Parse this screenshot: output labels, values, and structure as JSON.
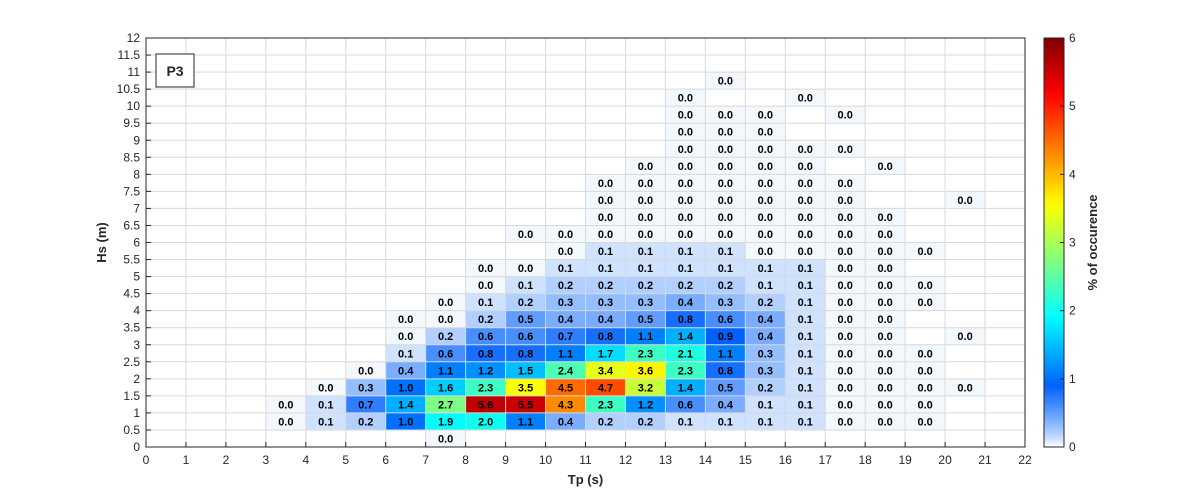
{
  "chart_data": {
    "type": "heatmap",
    "panel_label": "P3",
    "xlabel": "Tp (s)",
    "ylabel": "Hs (m)",
    "colorbar_label": "% of occurence",
    "xlim": [
      0,
      22
    ],
    "ylim": [
      0,
      12
    ],
    "x_bin_width": 1,
    "y_bin_width": 0.5,
    "x_ticks": [
      "0",
      "1",
      "2",
      "3",
      "4",
      "5",
      "6",
      "7",
      "8",
      "9",
      "10",
      "11",
      "12",
      "13",
      "14",
      "15",
      "16",
      "17",
      "18",
      "19",
      "20",
      "21",
      "22"
    ],
    "y_ticks": [
      "0",
      "0.5",
      "1",
      "1.5",
      "2",
      "2.5",
      "3",
      "3.5",
      "4",
      "4.5",
      "5",
      "5.5",
      "6",
      "6.5",
      "7",
      "7.5",
      "8",
      "8.5",
      "9",
      "9.5",
      "10",
      "10.5",
      "11",
      "11.5",
      "12"
    ],
    "colorbar_ticks": [
      "0",
      "1",
      "2",
      "3",
      "4",
      "5",
      "6"
    ],
    "clim": [
      0,
      6
    ],
    "grid": true,
    "colormap": "jet (white at 0)",
    "cells": [
      {
        "tp": 7.5,
        "hs": 0.25,
        "value": "0.0"
      },
      {
        "tp": 3.5,
        "hs": 0.75,
        "value": "0.0"
      },
      {
        "tp": 4.5,
        "hs": 0.75,
        "value": "0.1"
      },
      {
        "tp": 5.5,
        "hs": 0.75,
        "value": "0.2"
      },
      {
        "tp": 6.5,
        "hs": 0.75,
        "value": "1.0"
      },
      {
        "tp": 7.5,
        "hs": 0.75,
        "value": "1.9"
      },
      {
        "tp": 8.5,
        "hs": 0.75,
        "value": "2.0"
      },
      {
        "tp": 9.5,
        "hs": 0.75,
        "value": "1.1"
      },
      {
        "tp": 10.5,
        "hs": 0.75,
        "value": "0.4"
      },
      {
        "tp": 11.5,
        "hs": 0.75,
        "value": "0.2"
      },
      {
        "tp": 12.5,
        "hs": 0.75,
        "value": "0.2"
      },
      {
        "tp": 13.5,
        "hs": 0.75,
        "value": "0.1"
      },
      {
        "tp": 14.5,
        "hs": 0.75,
        "value": "0.1"
      },
      {
        "tp": 15.5,
        "hs": 0.75,
        "value": "0.1"
      },
      {
        "tp": 16.5,
        "hs": 0.75,
        "value": "0.1"
      },
      {
        "tp": 17.5,
        "hs": 0.75,
        "value": "0.0"
      },
      {
        "tp": 18.5,
        "hs": 0.75,
        "value": "0.0"
      },
      {
        "tp": 19.5,
        "hs": 0.75,
        "value": "0.0"
      },
      {
        "tp": 3.5,
        "hs": 1.25,
        "value": "0.0"
      },
      {
        "tp": 4.5,
        "hs": 1.25,
        "value": "0.1"
      },
      {
        "tp": 5.5,
        "hs": 1.25,
        "value": "0.7"
      },
      {
        "tp": 6.5,
        "hs": 1.25,
        "value": "1.4"
      },
      {
        "tp": 7.5,
        "hs": 1.25,
        "value": "2.7"
      },
      {
        "tp": 8.5,
        "hs": 1.25,
        "value": "5.6"
      },
      {
        "tp": 9.5,
        "hs": 1.25,
        "value": "5.5"
      },
      {
        "tp": 10.5,
        "hs": 1.25,
        "value": "4.3"
      },
      {
        "tp": 11.5,
        "hs": 1.25,
        "value": "2.3"
      },
      {
        "tp": 12.5,
        "hs": 1.25,
        "value": "1.2"
      },
      {
        "tp": 13.5,
        "hs": 1.25,
        "value": "0.6"
      },
      {
        "tp": 14.5,
        "hs": 1.25,
        "value": "0.4"
      },
      {
        "tp": 15.5,
        "hs": 1.25,
        "value": "0.1"
      },
      {
        "tp": 16.5,
        "hs": 1.25,
        "value": "0.1"
      },
      {
        "tp": 17.5,
        "hs": 1.25,
        "value": "0.0"
      },
      {
        "tp": 18.5,
        "hs": 1.25,
        "value": "0.0"
      },
      {
        "tp": 19.5,
        "hs": 1.25,
        "value": "0.0"
      },
      {
        "tp": 4.5,
        "hs": 1.75,
        "value": "0.0"
      },
      {
        "tp": 5.5,
        "hs": 1.75,
        "value": "0.3"
      },
      {
        "tp": 6.5,
        "hs": 1.75,
        "value": "1.0"
      },
      {
        "tp": 7.5,
        "hs": 1.75,
        "value": "1.6"
      },
      {
        "tp": 8.5,
        "hs": 1.75,
        "value": "2.3"
      },
      {
        "tp": 9.5,
        "hs": 1.75,
        "value": "3.5"
      },
      {
        "tp": 10.5,
        "hs": 1.75,
        "value": "4.5"
      },
      {
        "tp": 11.5,
        "hs": 1.75,
        "value": "4.7"
      },
      {
        "tp": 12.5,
        "hs": 1.75,
        "value": "3.2"
      },
      {
        "tp": 13.5,
        "hs": 1.75,
        "value": "1.4"
      },
      {
        "tp": 14.5,
        "hs": 1.75,
        "value": "0.5"
      },
      {
        "tp": 15.5,
        "hs": 1.75,
        "value": "0.2"
      },
      {
        "tp": 16.5,
        "hs": 1.75,
        "value": "0.1"
      },
      {
        "tp": 17.5,
        "hs": 1.75,
        "value": "0.0"
      },
      {
        "tp": 18.5,
        "hs": 1.75,
        "value": "0.0"
      },
      {
        "tp": 19.5,
        "hs": 1.75,
        "value": "0.0"
      },
      {
        "tp": 20.5,
        "hs": 1.75,
        "value": "0.0"
      },
      {
        "tp": 5.5,
        "hs": 2.25,
        "value": "0.0"
      },
      {
        "tp": 6.5,
        "hs": 2.25,
        "value": "0.4"
      },
      {
        "tp": 7.5,
        "hs": 2.25,
        "value": "1.1"
      },
      {
        "tp": 8.5,
        "hs": 2.25,
        "value": "1.2"
      },
      {
        "tp": 9.5,
        "hs": 2.25,
        "value": "1.5"
      },
      {
        "tp": 10.5,
        "hs": 2.25,
        "value": "2.4"
      },
      {
        "tp": 11.5,
        "hs": 2.25,
        "value": "3.4"
      },
      {
        "tp": 12.5,
        "hs": 2.25,
        "value": "3.6"
      },
      {
        "tp": 13.5,
        "hs": 2.25,
        "value": "2.3"
      },
      {
        "tp": 14.5,
        "hs": 2.25,
        "value": "0.8"
      },
      {
        "tp": 15.5,
        "hs": 2.25,
        "value": "0.3"
      },
      {
        "tp": 16.5,
        "hs": 2.25,
        "value": "0.1"
      },
      {
        "tp": 17.5,
        "hs": 2.25,
        "value": "0.0"
      },
      {
        "tp": 18.5,
        "hs": 2.25,
        "value": "0.0"
      },
      {
        "tp": 19.5,
        "hs": 2.25,
        "value": "0.0"
      },
      {
        "tp": 6.5,
        "hs": 2.75,
        "value": "0.1"
      },
      {
        "tp": 7.5,
        "hs": 2.75,
        "value": "0.6"
      },
      {
        "tp": 8.5,
        "hs": 2.75,
        "value": "0.8"
      },
      {
        "tp": 9.5,
        "hs": 2.75,
        "value": "0.8"
      },
      {
        "tp": 10.5,
        "hs": 2.75,
        "value": "1.1"
      },
      {
        "tp": 11.5,
        "hs": 2.75,
        "value": "1.7"
      },
      {
        "tp": 12.5,
        "hs": 2.75,
        "value": "2.3"
      },
      {
        "tp": 13.5,
        "hs": 2.75,
        "value": "2.1"
      },
      {
        "tp": 14.5,
        "hs": 2.75,
        "value": "1.1"
      },
      {
        "tp": 15.5,
        "hs": 2.75,
        "value": "0.3"
      },
      {
        "tp": 16.5,
        "hs": 2.75,
        "value": "0.1"
      },
      {
        "tp": 17.5,
        "hs": 2.75,
        "value": "0.0"
      },
      {
        "tp": 18.5,
        "hs": 2.75,
        "value": "0.0"
      },
      {
        "tp": 19.5,
        "hs": 2.75,
        "value": "0.0"
      },
      {
        "tp": 6.5,
        "hs": 3.25,
        "value": "0.0"
      },
      {
        "tp": 7.5,
        "hs": 3.25,
        "value": "0.2"
      },
      {
        "tp": 8.5,
        "hs": 3.25,
        "value": "0.6"
      },
      {
        "tp": 9.5,
        "hs": 3.25,
        "value": "0.6"
      },
      {
        "tp": 10.5,
        "hs": 3.25,
        "value": "0.7"
      },
      {
        "tp": 11.5,
        "hs": 3.25,
        "value": "0.8"
      },
      {
        "tp": 12.5,
        "hs": 3.25,
        "value": "1.1"
      },
      {
        "tp": 13.5,
        "hs": 3.25,
        "value": "1.4"
      },
      {
        "tp": 14.5,
        "hs": 3.25,
        "value": "0.9"
      },
      {
        "tp": 15.5,
        "hs": 3.25,
        "value": "0.4"
      },
      {
        "tp": 16.5,
        "hs": 3.25,
        "value": "0.1"
      },
      {
        "tp": 17.5,
        "hs": 3.25,
        "value": "0.0"
      },
      {
        "tp": 18.5,
        "hs": 3.25,
        "value": "0.0"
      },
      {
        "tp": 20.5,
        "hs": 3.25,
        "value": "0.0"
      },
      {
        "tp": 6.5,
        "hs": 3.75,
        "value": "0.0"
      },
      {
        "tp": 7.5,
        "hs": 3.75,
        "value": "0.0"
      },
      {
        "tp": 8.5,
        "hs": 3.75,
        "value": "0.2"
      },
      {
        "tp": 9.5,
        "hs": 3.75,
        "value": "0.5"
      },
      {
        "tp": 10.5,
        "hs": 3.75,
        "value": "0.4"
      },
      {
        "tp": 11.5,
        "hs": 3.75,
        "value": "0.4"
      },
      {
        "tp": 12.5,
        "hs": 3.75,
        "value": "0.5"
      },
      {
        "tp": 13.5,
        "hs": 3.75,
        "value": "0.8"
      },
      {
        "tp": 14.5,
        "hs": 3.75,
        "value": "0.6"
      },
      {
        "tp": 15.5,
        "hs": 3.75,
        "value": "0.4"
      },
      {
        "tp": 16.5,
        "hs": 3.75,
        "value": "0.1"
      },
      {
        "tp": 17.5,
        "hs": 3.75,
        "value": "0.0"
      },
      {
        "tp": 18.5,
        "hs": 3.75,
        "value": "0.0"
      },
      {
        "tp": 7.5,
        "hs": 4.25,
        "value": "0.0"
      },
      {
        "tp": 8.5,
        "hs": 4.25,
        "value": "0.1"
      },
      {
        "tp": 9.5,
        "hs": 4.25,
        "value": "0.2"
      },
      {
        "tp": 10.5,
        "hs": 4.25,
        "value": "0.3"
      },
      {
        "tp": 11.5,
        "hs": 4.25,
        "value": "0.3"
      },
      {
        "tp": 12.5,
        "hs": 4.25,
        "value": "0.3"
      },
      {
        "tp": 13.5,
        "hs": 4.25,
        "value": "0.4"
      },
      {
        "tp": 14.5,
        "hs": 4.25,
        "value": "0.3"
      },
      {
        "tp": 15.5,
        "hs": 4.25,
        "value": "0.2"
      },
      {
        "tp": 16.5,
        "hs": 4.25,
        "value": "0.1"
      },
      {
        "tp": 17.5,
        "hs": 4.25,
        "value": "0.0"
      },
      {
        "tp": 18.5,
        "hs": 4.25,
        "value": "0.0"
      },
      {
        "tp": 19.5,
        "hs": 4.25,
        "value": "0.0"
      },
      {
        "tp": 8.5,
        "hs": 4.75,
        "value": "0.0"
      },
      {
        "tp": 9.5,
        "hs": 4.75,
        "value": "0.1"
      },
      {
        "tp": 10.5,
        "hs": 4.75,
        "value": "0.2"
      },
      {
        "tp": 11.5,
        "hs": 4.75,
        "value": "0.2"
      },
      {
        "tp": 12.5,
        "hs": 4.75,
        "value": "0.2"
      },
      {
        "tp": 13.5,
        "hs": 4.75,
        "value": "0.2"
      },
      {
        "tp": 14.5,
        "hs": 4.75,
        "value": "0.2"
      },
      {
        "tp": 15.5,
        "hs": 4.75,
        "value": "0.1"
      },
      {
        "tp": 16.5,
        "hs": 4.75,
        "value": "0.1"
      },
      {
        "tp": 17.5,
        "hs": 4.75,
        "value": "0.0"
      },
      {
        "tp": 18.5,
        "hs": 4.75,
        "value": "0.0"
      },
      {
        "tp": 19.5,
        "hs": 4.75,
        "value": "0.0"
      },
      {
        "tp": 8.5,
        "hs": 5.25,
        "value": "0.0"
      },
      {
        "tp": 9.5,
        "hs": 5.25,
        "value": "0.0"
      },
      {
        "tp": 10.5,
        "hs": 5.25,
        "value": "0.1"
      },
      {
        "tp": 11.5,
        "hs": 5.25,
        "value": "0.1"
      },
      {
        "tp": 12.5,
        "hs": 5.25,
        "value": "0.1"
      },
      {
        "tp": 13.5,
        "hs": 5.25,
        "value": "0.1"
      },
      {
        "tp": 14.5,
        "hs": 5.25,
        "value": "0.1"
      },
      {
        "tp": 15.5,
        "hs": 5.25,
        "value": "0.1"
      },
      {
        "tp": 16.5,
        "hs": 5.25,
        "value": "0.1"
      },
      {
        "tp": 17.5,
        "hs": 5.25,
        "value": "0.0"
      },
      {
        "tp": 18.5,
        "hs": 5.25,
        "value": "0.0"
      },
      {
        "tp": 10.5,
        "hs": 5.75,
        "value": "0.0"
      },
      {
        "tp": 11.5,
        "hs": 5.75,
        "value": "0.1"
      },
      {
        "tp": 12.5,
        "hs": 5.75,
        "value": "0.1"
      },
      {
        "tp": 13.5,
        "hs": 5.75,
        "value": "0.1"
      },
      {
        "tp": 14.5,
        "hs": 5.75,
        "value": "0.1"
      },
      {
        "tp": 15.5,
        "hs": 5.75,
        "value": "0.0"
      },
      {
        "tp": 16.5,
        "hs": 5.75,
        "value": "0.0"
      },
      {
        "tp": 17.5,
        "hs": 5.75,
        "value": "0.0"
      },
      {
        "tp": 18.5,
        "hs": 5.75,
        "value": "0.0"
      },
      {
        "tp": 19.5,
        "hs": 5.75,
        "value": "0.0"
      },
      {
        "tp": 9.5,
        "hs": 6.25,
        "value": "0.0"
      },
      {
        "tp": 10.5,
        "hs": 6.25,
        "value": "0.0"
      },
      {
        "tp": 11.5,
        "hs": 6.25,
        "value": "0.0"
      },
      {
        "tp": 12.5,
        "hs": 6.25,
        "value": "0.0"
      },
      {
        "tp": 13.5,
        "hs": 6.25,
        "value": "0.0"
      },
      {
        "tp": 14.5,
        "hs": 6.25,
        "value": "0.0"
      },
      {
        "tp": 15.5,
        "hs": 6.25,
        "value": "0.0"
      },
      {
        "tp": 16.5,
        "hs": 6.25,
        "value": "0.0"
      },
      {
        "tp": 17.5,
        "hs": 6.25,
        "value": "0.0"
      },
      {
        "tp": 18.5,
        "hs": 6.25,
        "value": "0.0"
      },
      {
        "tp": 11.5,
        "hs": 6.75,
        "value": "0.0"
      },
      {
        "tp": 12.5,
        "hs": 6.75,
        "value": "0.0"
      },
      {
        "tp": 13.5,
        "hs": 6.75,
        "value": "0.0"
      },
      {
        "tp": 14.5,
        "hs": 6.75,
        "value": "0.0"
      },
      {
        "tp": 15.5,
        "hs": 6.75,
        "value": "0.0"
      },
      {
        "tp": 16.5,
        "hs": 6.75,
        "value": "0.0"
      },
      {
        "tp": 17.5,
        "hs": 6.75,
        "value": "0.0"
      },
      {
        "tp": 18.5,
        "hs": 6.75,
        "value": "0.0"
      },
      {
        "tp": 11.5,
        "hs": 7.25,
        "value": "0.0"
      },
      {
        "tp": 12.5,
        "hs": 7.25,
        "value": "0.0"
      },
      {
        "tp": 13.5,
        "hs": 7.25,
        "value": "0.0"
      },
      {
        "tp": 14.5,
        "hs": 7.25,
        "value": "0.0"
      },
      {
        "tp": 15.5,
        "hs": 7.25,
        "value": "0.0"
      },
      {
        "tp": 16.5,
        "hs": 7.25,
        "value": "0.0"
      },
      {
        "tp": 17.5,
        "hs": 7.25,
        "value": "0.0"
      },
      {
        "tp": 20.5,
        "hs": 7.25,
        "value": "0.0"
      },
      {
        "tp": 11.5,
        "hs": 7.75,
        "value": "0.0"
      },
      {
        "tp": 12.5,
        "hs": 7.75,
        "value": "0.0"
      },
      {
        "tp": 13.5,
        "hs": 7.75,
        "value": "0.0"
      },
      {
        "tp": 14.5,
        "hs": 7.75,
        "value": "0.0"
      },
      {
        "tp": 15.5,
        "hs": 7.75,
        "value": "0.0"
      },
      {
        "tp": 16.5,
        "hs": 7.75,
        "value": "0.0"
      },
      {
        "tp": 17.5,
        "hs": 7.75,
        "value": "0.0"
      },
      {
        "tp": 12.5,
        "hs": 8.25,
        "value": "0.0"
      },
      {
        "tp": 13.5,
        "hs": 8.25,
        "value": "0.0"
      },
      {
        "tp": 14.5,
        "hs": 8.25,
        "value": "0.0"
      },
      {
        "tp": 15.5,
        "hs": 8.25,
        "value": "0.0"
      },
      {
        "tp": 16.5,
        "hs": 8.25,
        "value": "0.0"
      },
      {
        "tp": 18.5,
        "hs": 8.25,
        "value": "0.0"
      },
      {
        "tp": 13.5,
        "hs": 8.75,
        "value": "0.0"
      },
      {
        "tp": 14.5,
        "hs": 8.75,
        "value": "0.0"
      },
      {
        "tp": 15.5,
        "hs": 8.75,
        "value": "0.0"
      },
      {
        "tp": 16.5,
        "hs": 8.75,
        "value": "0.0"
      },
      {
        "tp": 17.5,
        "hs": 8.75,
        "value": "0.0"
      },
      {
        "tp": 13.5,
        "hs": 9.25,
        "value": "0.0"
      },
      {
        "tp": 14.5,
        "hs": 9.25,
        "value": "0.0"
      },
      {
        "tp": 15.5,
        "hs": 9.25,
        "value": "0.0"
      },
      {
        "tp": 13.5,
        "hs": 9.75,
        "value": "0.0"
      },
      {
        "tp": 14.5,
        "hs": 9.75,
        "value": "0.0"
      },
      {
        "tp": 15.5,
        "hs": 9.75,
        "value": "0.0"
      },
      {
        "tp": 17.5,
        "hs": 9.75,
        "value": "0.0"
      },
      {
        "tp": 13.5,
        "hs": 10.25,
        "value": "0.0"
      },
      {
        "tp": 16.5,
        "hs": 10.25,
        "value": "0.0"
      },
      {
        "tp": 14.5,
        "hs": 10.75,
        "value": "0.0"
      }
    ]
  }
}
